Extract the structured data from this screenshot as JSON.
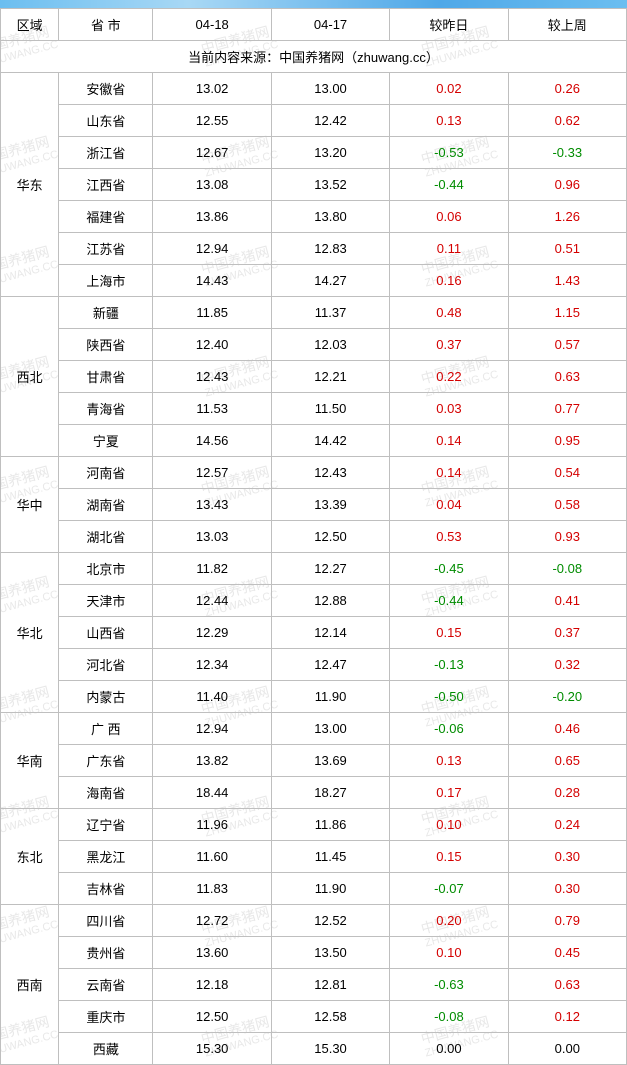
{
  "header": {
    "region": "区域",
    "province": "省 市",
    "date1": "04-18",
    "date2": "04-17",
    "vs_yesterday": "较昨日",
    "vs_lastweek": "较上周"
  },
  "source_line": "当前内容来源：中国养猪网（zhuwang.cc）",
  "watermark_text_cn": "中国养猪网",
  "watermark_text_en": "ZHUWANG.CC",
  "colors": {
    "border": "#bfbfbf",
    "positive": "#d40000",
    "negative": "#008c00",
    "zero": "#000000",
    "watermark": "#e8e8e8",
    "topbar": "#6bbef0"
  },
  "regions": [
    {
      "name": "华东",
      "rows": [
        {
          "prov": "安徽省",
          "d1": "13.02",
          "d2": "13.00",
          "dy": "0.02",
          "dw": "0.26"
        },
        {
          "prov": "山东省",
          "d1": "12.55",
          "d2": "12.42",
          "dy": "0.13",
          "dw": "0.62"
        },
        {
          "prov": "浙江省",
          "d1": "12.67",
          "d2": "13.20",
          "dy": "-0.53",
          "dw": "-0.33"
        },
        {
          "prov": "江西省",
          "d1": "13.08",
          "d2": "13.52",
          "dy": "-0.44",
          "dw": "0.96"
        },
        {
          "prov": "福建省",
          "d1": "13.86",
          "d2": "13.80",
          "dy": "0.06",
          "dw": "1.26"
        },
        {
          "prov": "江苏省",
          "d1": "12.94",
          "d2": "12.83",
          "dy": "0.11",
          "dw": "0.51"
        },
        {
          "prov": "上海市",
          "d1": "14.43",
          "d2": "14.27",
          "dy": "0.16",
          "dw": "1.43"
        }
      ]
    },
    {
      "name": "西北",
      "rows": [
        {
          "prov": "新疆",
          "d1": "11.85",
          "d2": "11.37",
          "dy": "0.48",
          "dw": "1.15"
        },
        {
          "prov": "陕西省",
          "d1": "12.40",
          "d2": "12.03",
          "dy": "0.37",
          "dw": "0.57"
        },
        {
          "prov": "甘肃省",
          "d1": "12.43",
          "d2": "12.21",
          "dy": "0.22",
          "dw": "0.63"
        },
        {
          "prov": "青海省",
          "d1": "11.53",
          "d2": "11.50",
          "dy": "0.03",
          "dw": "0.77"
        },
        {
          "prov": "宁夏",
          "d1": "14.56",
          "d2": "14.42",
          "dy": "0.14",
          "dw": "0.95"
        }
      ]
    },
    {
      "name": "华中",
      "rows": [
        {
          "prov": "河南省",
          "d1": "12.57",
          "d2": "12.43",
          "dy": "0.14",
          "dw": "0.54"
        },
        {
          "prov": "湖南省",
          "d1": "13.43",
          "d2": "13.39",
          "dy": "0.04",
          "dw": "0.58"
        },
        {
          "prov": "湖北省",
          "d1": "13.03",
          "d2": "12.50",
          "dy": "0.53",
          "dw": "0.93"
        }
      ]
    },
    {
      "name": "华北",
      "rows": [
        {
          "prov": "北京市",
          "d1": "11.82",
          "d2": "12.27",
          "dy": "-0.45",
          "dw": "-0.08"
        },
        {
          "prov": "天津市",
          "d1": "12.44",
          "d2": "12.88",
          "dy": "-0.44",
          "dw": "0.41"
        },
        {
          "prov": "山西省",
          "d1": "12.29",
          "d2": "12.14",
          "dy": "0.15",
          "dw": "0.37"
        },
        {
          "prov": "河北省",
          "d1": "12.34",
          "d2": "12.47",
          "dy": "-0.13",
          "dw": "0.32"
        },
        {
          "prov": "内蒙古",
          "d1": "11.40",
          "d2": "11.90",
          "dy": "-0.50",
          "dw": "-0.20"
        }
      ]
    },
    {
      "name": "华南",
      "rows": [
        {
          "prov": "广 西",
          "d1": "12.94",
          "d2": "13.00",
          "dy": "-0.06",
          "dw": "0.46"
        },
        {
          "prov": "广东省",
          "d1": "13.82",
          "d2": "13.69",
          "dy": "0.13",
          "dw": "0.65"
        },
        {
          "prov": "海南省",
          "d1": "18.44",
          "d2": "18.27",
          "dy": "0.17",
          "dw": "0.28"
        }
      ]
    },
    {
      "name": "东北",
      "rows": [
        {
          "prov": "辽宁省",
          "d1": "11.96",
          "d2": "11.86",
          "dy": "0.10",
          "dw": "0.24"
        },
        {
          "prov": "黑龙江",
          "d1": "11.60",
          "d2": "11.45",
          "dy": "0.15",
          "dw": "0.30"
        },
        {
          "prov": "吉林省",
          "d1": "11.83",
          "d2": "11.90",
          "dy": "-0.07",
          "dw": "0.30"
        }
      ]
    },
    {
      "name": "西南",
      "rows": [
        {
          "prov": "四川省",
          "d1": "12.72",
          "d2": "12.52",
          "dy": "0.20",
          "dw": "0.79"
        },
        {
          "prov": "贵州省",
          "d1": "13.60",
          "d2": "13.50",
          "dy": "0.10",
          "dw": "0.45"
        },
        {
          "prov": "云南省",
          "d1": "12.18",
          "d2": "12.81",
          "dy": "-0.63",
          "dw": "0.63"
        },
        {
          "prov": "重庆市",
          "d1": "12.50",
          "d2": "12.58",
          "dy": "-0.08",
          "dw": "0.12"
        },
        {
          "prov": "西藏",
          "d1": "15.30",
          "d2": "15.30",
          "dy": "0.00",
          "dw": "0.00"
        }
      ]
    }
  ]
}
